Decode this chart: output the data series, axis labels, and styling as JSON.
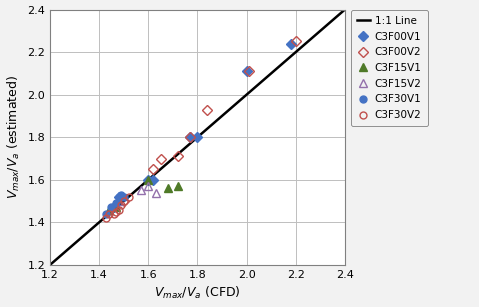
{
  "xlabel": "V_{max}/V_a (CFD)",
  "ylabel": "V_{max}/V_a (estimated)",
  "xlim": [
    1.2,
    2.4
  ],
  "ylim": [
    1.2,
    2.4
  ],
  "xticks": [
    1.2,
    1.4,
    1.6,
    1.8,
    2.0,
    2.2,
    2.4
  ],
  "yticks": [
    1.2,
    1.4,
    1.6,
    1.8,
    2.0,
    2.2,
    2.4
  ],
  "one_to_one_line": [
    1.2,
    2.4
  ],
  "series": [
    {
      "name": "C3F00V1",
      "x": [
        1.46,
        1.48,
        1.6,
        1.62,
        1.77,
        1.8,
        2.0,
        2.18
      ],
      "y": [
        1.47,
        1.52,
        1.6,
        1.6,
        1.8,
        1.8,
        2.11,
        2.24
      ],
      "marker": "D",
      "color": "#4472C4",
      "markersize": 5,
      "filled": true
    },
    {
      "name": "C3F00V2",
      "x": [
        1.5,
        1.62,
        1.65,
        1.72,
        1.77,
        1.84,
        2.01,
        2.2
      ],
      "y": [
        1.5,
        1.65,
        1.7,
        1.71,
        1.8,
        1.93,
        2.11,
        2.25
      ],
      "marker": "D",
      "color": "#C0504D",
      "markersize": 5,
      "filled": false
    },
    {
      "name": "C3F15V1",
      "x": [
        1.44,
        1.47,
        1.6,
        1.68,
        1.72
      ],
      "y": [
        1.46,
        1.47,
        1.6,
        1.56,
        1.57
      ],
      "marker": "^",
      "color": "#4F7A28",
      "markersize": 6,
      "filled": true
    },
    {
      "name": "C3F15V2",
      "x": [
        1.48,
        1.57,
        1.6,
        1.63
      ],
      "y": [
        1.5,
        1.55,
        1.57,
        1.54
      ],
      "marker": "^",
      "color": "#9370AB",
      "markersize": 6,
      "filled": false
    },
    {
      "name": "C3F30V1",
      "x": [
        1.43,
        1.45,
        1.47,
        1.48,
        1.49,
        1.5
      ],
      "y": [
        1.44,
        1.47,
        1.49,
        1.52,
        1.53,
        1.52
      ],
      "marker": "o",
      "color": "#4472C4",
      "markersize": 5,
      "filled": true
    },
    {
      "name": "C3F30V2",
      "x": [
        1.43,
        1.44,
        1.46,
        1.47,
        1.48,
        1.49,
        1.5,
        1.52
      ],
      "y": [
        1.42,
        1.44,
        1.44,
        1.45,
        1.46,
        1.48,
        1.5,
        1.52
      ],
      "marker": "o",
      "color": "#C0504D",
      "markersize": 5,
      "filled": false
    }
  ],
  "fig_facecolor": "#F2F2F2",
  "plot_facecolor": "#FFFFFF",
  "grid_color": "#BFBFBF",
  "line_color": "#000000",
  "spine_color": "#808080",
  "tick_label_size": 8,
  "axis_label_size": 9,
  "legend_fontsize": 7.5
}
